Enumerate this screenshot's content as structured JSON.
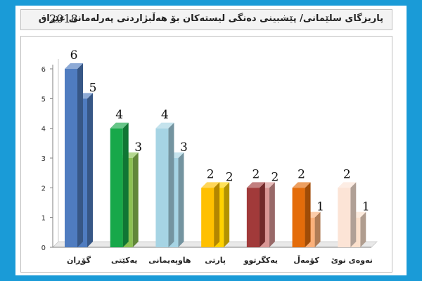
{
  "chart_data": {
    "type": "bar",
    "title": "پاریزگای سلێمانی/ پێشبینی دەنگی لیستەکان بۆ هەڵبژاردنی پەرلەمانی عێراق",
    "year": "2018",
    "categories": [
      "گۆڕان",
      "یەکێتی",
      "هاوپەیمانی",
      "پارتی",
      "یەکگرتوو",
      "کۆمەڵ",
      "نەوەی نوێ"
    ],
    "series": [
      {
        "values": [
          6,
          4,
          4,
          2,
          2,
          2,
          2
        ]
      },
      {
        "values": [
          5,
          3,
          3,
          2,
          2,
          1,
          1
        ]
      }
    ],
    "yticks": [
      "0",
      "1",
      "2",
      "3",
      "4",
      "5",
      "6"
    ],
    "ylim": [
      0,
      6
    ],
    "grid": false,
    "legend": "none",
    "colors": {
      "front": [
        "#4f7cc0",
        "#17a84a",
        "#a6d4e4",
        "#ffc000",
        "#a13a3a",
        "#e46c0a",
        "#fce4d6"
      ],
      "back": [
        "#4f7cc0",
        "#8cc152",
        "#a6d4e4",
        "#ffd200",
        "#d99694",
        "#fbb17b",
        "#fbe0cc"
      ]
    }
  }
}
